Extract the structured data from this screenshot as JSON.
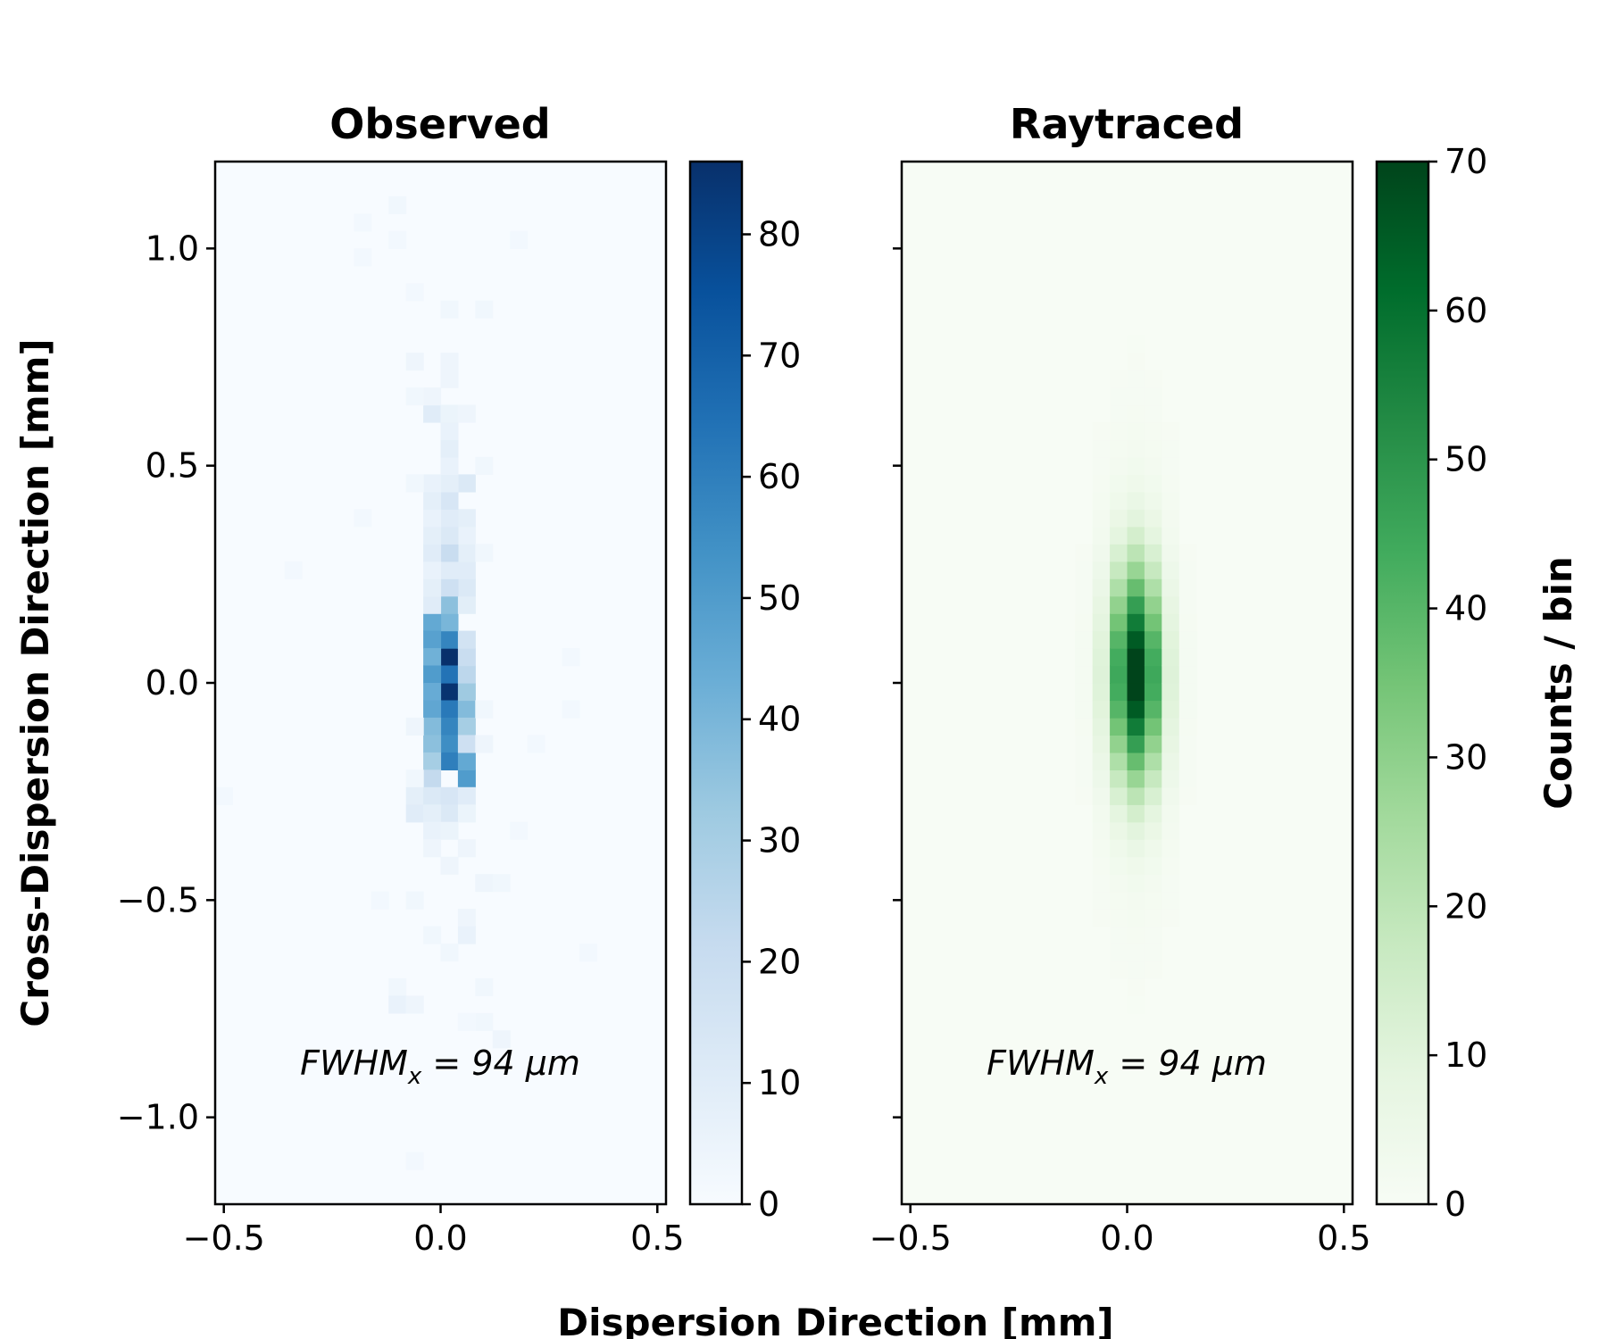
{
  "chart_data": [
    {
      "type": "heatmap",
      "title": "Observed",
      "colormap": "Blues",
      "color_low": "#f7fbff",
      "color_high": "#08306b",
      "xlim": [
        -0.52,
        0.52
      ],
      "ylim": [
        -1.2,
        1.2
      ],
      "bin_size_mm": 0.04,
      "xticks": [
        -0.5,
        0.0,
        0.5
      ],
      "xtick_labels": [
        "−0.5",
        "0.0",
        "0.5"
      ],
      "yticks": [
        1.0,
        0.5,
        0.0,
        -0.5,
        -1.0
      ],
      "ytick_labels": [
        "1.0",
        "0.5",
        "0.0",
        "−0.5",
        "−1.0"
      ],
      "colorbar": {
        "range": [
          0,
          86
        ],
        "ticks": [
          0,
          10,
          20,
          30,
          40,
          50,
          60,
          70,
          80
        ],
        "tick_labels": [
          "0",
          "10",
          "20",
          "30",
          "40",
          "50",
          "60",
          "70",
          "80"
        ]
      },
      "annotation": {
        "prefix": "FWHM",
        "subscript": "x",
        "text": " = 94 μm"
      },
      "cells": [
        {
          "x": 0.02,
          "y": 0.06,
          "v": 86
        },
        {
          "x": 0.02,
          "y": -0.02,
          "v": 85
        },
        {
          "x": 0.02,
          "y": 0.1,
          "v": 58
        },
        {
          "x": 0.02,
          "y": 0.02,
          "v": 64
        },
        {
          "x": 0.02,
          "y": -0.06,
          "v": 62
        },
        {
          "x": 0.02,
          "y": -0.1,
          "v": 58
        },
        {
          "x": 0.02,
          "y": -0.14,
          "v": 55
        },
        {
          "x": 0.02,
          "y": -0.18,
          "v": 60
        },
        {
          "x": 0.02,
          "y": 0.14,
          "v": 40
        },
        {
          "x": 0.02,
          "y": 0.18,
          "v": 36
        },
        {
          "x": -0.02,
          "y": 0.14,
          "v": 45
        },
        {
          "x": -0.02,
          "y": 0.1,
          "v": 48
        },
        {
          "x": -0.02,
          "y": 0.06,
          "v": 42
        },
        {
          "x": -0.02,
          "y": 0.02,
          "v": 50
        },
        {
          "x": -0.02,
          "y": -0.02,
          "v": 44
        },
        {
          "x": -0.02,
          "y": -0.06,
          "v": 46
        },
        {
          "x": -0.02,
          "y": -0.1,
          "v": 38
        },
        {
          "x": -0.02,
          "y": -0.14,
          "v": 36
        },
        {
          "x": -0.02,
          "y": -0.18,
          "v": 30
        },
        {
          "x": -0.02,
          "y": -0.22,
          "v": 22
        },
        {
          "x": 0.06,
          "y": -0.22,
          "v": 50
        },
        {
          "x": 0.06,
          "y": -0.18,
          "v": 45
        },
        {
          "x": 0.06,
          "y": -0.06,
          "v": 38
        },
        {
          "x": 0.06,
          "y": -0.1,
          "v": 30
        },
        {
          "x": 0.06,
          "y": -0.02,
          "v": 32
        },
        {
          "x": 0.06,
          "y": 0.02,
          "v": 24
        },
        {
          "x": 0.06,
          "y": 0.06,
          "v": 20
        },
        {
          "x": 0.06,
          "y": 0.1,
          "v": 16
        },
        {
          "x": 0.06,
          "y": -0.14,
          "v": 18
        },
        {
          "x": 0.06,
          "y": 0.18,
          "v": 9
        },
        {
          "x": 0.06,
          "y": 0.22,
          "v": 12
        },
        {
          "x": 0.06,
          "y": 0.26,
          "v": 10
        },
        {
          "x": 0.06,
          "y": 0.3,
          "v": 8
        },
        {
          "x": 0.06,
          "y": 0.34,
          "v": 6
        },
        {
          "x": 0.06,
          "y": 0.38,
          "v": 8
        },
        {
          "x": 0.06,
          "y": 0.46,
          "v": 12
        },
        {
          "x": 0.02,
          "y": 0.22,
          "v": 18
        },
        {
          "x": 0.02,
          "y": 0.26,
          "v": 10
        },
        {
          "x": 0.02,
          "y": 0.3,
          "v": 20
        },
        {
          "x": 0.02,
          "y": 0.34,
          "v": 12
        },
        {
          "x": 0.02,
          "y": 0.38,
          "v": 10
        },
        {
          "x": 0.02,
          "y": 0.42,
          "v": 14
        },
        {
          "x": 0.02,
          "y": 0.46,
          "v": 8
        },
        {
          "x": 0.02,
          "y": 0.5,
          "v": 6
        },
        {
          "x": 0.02,
          "y": 0.54,
          "v": 8
        },
        {
          "x": 0.02,
          "y": 0.58,
          "v": 6
        },
        {
          "x": -0.02,
          "y": 0.18,
          "v": 10
        },
        {
          "x": -0.02,
          "y": 0.22,
          "v": 8
        },
        {
          "x": -0.02,
          "y": 0.26,
          "v": 6
        },
        {
          "x": -0.02,
          "y": 0.3,
          "v": 10
        },
        {
          "x": -0.02,
          "y": 0.34,
          "v": 8
        },
        {
          "x": -0.02,
          "y": 0.38,
          "v": 6
        },
        {
          "x": -0.02,
          "y": 0.42,
          "v": 8
        },
        {
          "x": -0.02,
          "y": 0.46,
          "v": 6
        },
        {
          "x": -0.02,
          "y": 0.62,
          "v": 10
        },
        {
          "x": -0.02,
          "y": 0.66,
          "v": 4
        },
        {
          "x": 0.02,
          "y": 0.62,
          "v": 5
        },
        {
          "x": 0.02,
          "y": 0.7,
          "v": 4
        },
        {
          "x": 0.06,
          "y": 0.62,
          "v": 4
        },
        {
          "x": -0.06,
          "y": 0.74,
          "v": 4
        },
        {
          "x": -0.06,
          "y": 0.66,
          "v": 3
        },
        {
          "x": 0.02,
          "y": 0.74,
          "v": 4
        },
        {
          "x": 0.02,
          "y": 0.86,
          "v": 3
        },
        {
          "x": -0.06,
          "y": 0.46,
          "v": 3
        },
        {
          "x": 0.1,
          "y": 0.5,
          "v": 3
        },
        {
          "x": 0.1,
          "y": 0.3,
          "v": 3
        },
        {
          "x": 0.1,
          "y": -0.14,
          "v": 4
        },
        {
          "x": 0.1,
          "y": -0.06,
          "v": 3
        },
        {
          "x": -0.06,
          "y": -0.1,
          "v": 4
        },
        {
          "x": -0.06,
          "y": -0.22,
          "v": 3
        },
        {
          "x": -0.06,
          "y": -0.26,
          "v": 8
        },
        {
          "x": -0.06,
          "y": -0.3,
          "v": 10
        },
        {
          "x": -0.02,
          "y": -0.26,
          "v": 12
        },
        {
          "x": 0.02,
          "y": -0.26,
          "v": 14
        },
        {
          "x": 0.06,
          "y": -0.26,
          "v": 10
        },
        {
          "x": 0.02,
          "y": -0.3,
          "v": 12
        },
        {
          "x": -0.02,
          "y": -0.3,
          "v": 8
        },
        {
          "x": 0.06,
          "y": -0.3,
          "v": 5
        },
        {
          "x": -0.02,
          "y": -0.34,
          "v": 6
        },
        {
          "x": 0.02,
          "y": -0.34,
          "v": 5
        },
        {
          "x": -0.02,
          "y": -0.38,
          "v": 4
        },
        {
          "x": 0.06,
          "y": -0.38,
          "v": 4
        },
        {
          "x": 0.02,
          "y": -0.42,
          "v": 4
        },
        {
          "x": 0.1,
          "y": -0.46,
          "v": 4
        },
        {
          "x": 0.14,
          "y": -0.46,
          "v": 3
        },
        {
          "x": -0.06,
          "y": -0.5,
          "v": 3
        },
        {
          "x": 0.06,
          "y": -0.54,
          "v": 4
        },
        {
          "x": 0.06,
          "y": -0.58,
          "v": 6
        },
        {
          "x": -0.02,
          "y": -0.58,
          "v": 3
        },
        {
          "x": 0.02,
          "y": -0.62,
          "v": 3
        },
        {
          "x": -0.1,
          "y": -0.7,
          "v": 3
        },
        {
          "x": -0.1,
          "y": -0.74,
          "v": 6
        },
        {
          "x": -0.06,
          "y": -0.74,
          "v": 4
        },
        {
          "x": 0.1,
          "y": -0.7,
          "v": 3
        },
        {
          "x": 0.1,
          "y": -0.78,
          "v": 3
        },
        {
          "x": 0.14,
          "y": -0.82,
          "v": 4
        },
        {
          "x": 0.06,
          "y": -0.78,
          "v": 2
        },
        {
          "x": -0.14,
          "y": -0.5,
          "v": 2
        },
        {
          "x": -0.1,
          "y": 1.1,
          "v": 3
        },
        {
          "x": -0.18,
          "y": 1.06,
          "v": 2
        },
        {
          "x": -0.1,
          "y": 1.02,
          "v": 2
        },
        {
          "x": -0.18,
          "y": 0.98,
          "v": 2
        },
        {
          "x": -0.06,
          "y": 0.9,
          "v": 2
        },
        {
          "x": 0.1,
          "y": 0.86,
          "v": 3
        },
        {
          "x": 0.18,
          "y": 1.02,
          "v": 2
        },
        {
          "x": 0.3,
          "y": 0.06,
          "v": 2
        },
        {
          "x": 0.22,
          "y": -0.14,
          "v": 2
        },
        {
          "x": 0.3,
          "y": -0.06,
          "v": 2
        },
        {
          "x": -0.34,
          "y": 0.26,
          "v": 2
        },
        {
          "x": -0.5,
          "y": -0.26,
          "v": 2
        },
        {
          "x": 0.34,
          "y": -0.62,
          "v": 2
        },
        {
          "x": -0.06,
          "y": -1.1,
          "v": 2
        },
        {
          "x": 0.18,
          "y": -0.34,
          "v": 2
        },
        {
          "x": -0.18,
          "y": 0.38,
          "v": 2
        }
      ]
    },
    {
      "type": "heatmap",
      "title": "Raytraced",
      "colormap": "Greens",
      "color_low": "#f7fcf5",
      "color_high": "#00441b",
      "xlim": [
        -0.52,
        0.52
      ],
      "ylim": [
        -1.2,
        1.2
      ],
      "bin_size_mm": 0.04,
      "xticks": [
        -0.5,
        0.0,
        0.5
      ],
      "xtick_labels": [
        "−0.5",
        "0.0",
        "0.5"
      ],
      "yticks": [
        1.0,
        0.5,
        0.0,
        -0.5,
        -1.0
      ],
      "colorbar": {
        "range": [
          0,
          70
        ],
        "ticks": [
          0,
          10,
          20,
          30,
          40,
          50,
          60,
          70
        ],
        "tick_labels": [
          "0",
          "10",
          "20",
          "30",
          "40",
          "50",
          "60",
          "70"
        ],
        "label": "Counts / bin"
      },
      "annotation": {
        "prefix": "FWHM",
        "subscript": "x",
        "text": " = 94 μm"
      },
      "model": {
        "center_x": 0.02,
        "center_y": 0.02,
        "peak": 70,
        "sigma_x": 0.04,
        "sigma_y": 0.17
      }
    }
  ],
  "figure": {
    "xlabel": "Dispersion Direction [mm]",
    "ylabel": "Cross-Dispersion Direction [mm]"
  }
}
